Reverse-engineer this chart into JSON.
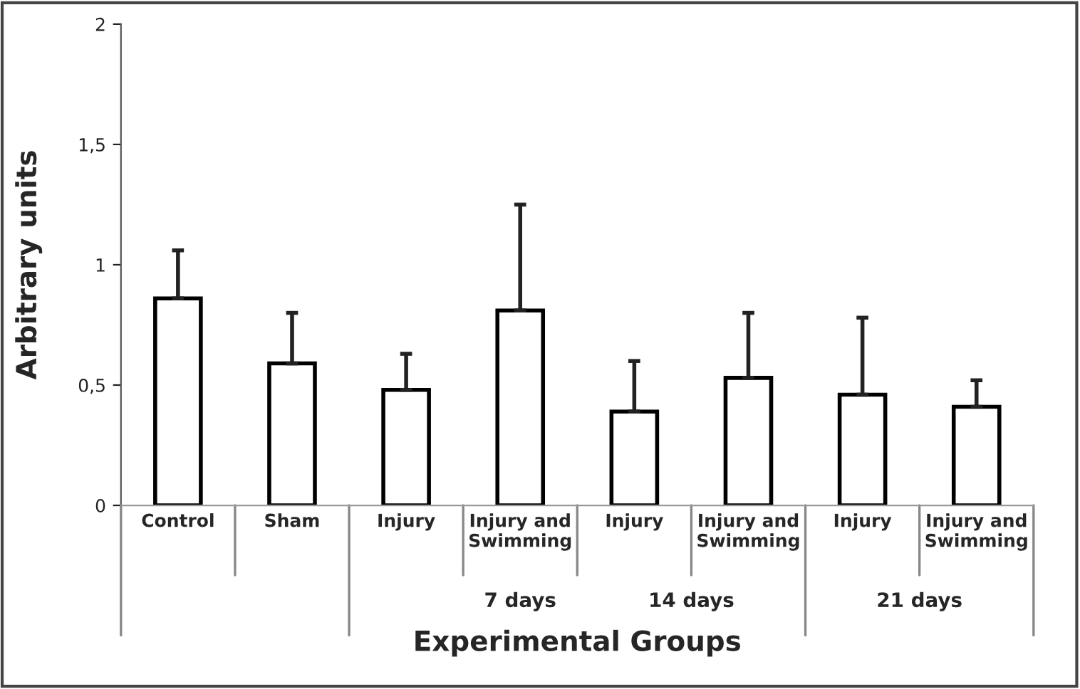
{
  "chart_data": {
    "type": "bar",
    "xlabel": "Experimental Groups",
    "ylabel": "Arbitrary units",
    "categories": [
      "Control",
      "Sham",
      "Injury",
      "Injury and\nSwimming",
      "Injury",
      "Injury and\nSwimming",
      "Injury",
      "Injury and\nSwimming"
    ],
    "values": [
      0.86,
      0.59,
      0.48,
      0.81,
      0.39,
      0.53,
      0.46,
      0.41
    ],
    "errors": [
      [
        0.86,
        1.06
      ],
      [
        0.59,
        0.8
      ],
      [
        0.48,
        0.63
      ],
      [
        0.81,
        1.25
      ],
      [
        0.39,
        0.6
      ],
      [
        0.53,
        0.8
      ],
      [
        0.46,
        0.78
      ],
      [
        0.41,
        0.52
      ]
    ],
    "color": "#ffffff",
    "ylim": [
      0,
      2
    ],
    "yticks": [
      0,
      {
        "value": 0.5,
        "label": "0,5"
      },
      1,
      {
        "value": 1.5,
        "label": "1,5"
      },
      2
    ],
    "annotations": [
      "7 days",
      "14 days",
      "21 days"
    ],
    "grid": false,
    "legend": false
  }
}
